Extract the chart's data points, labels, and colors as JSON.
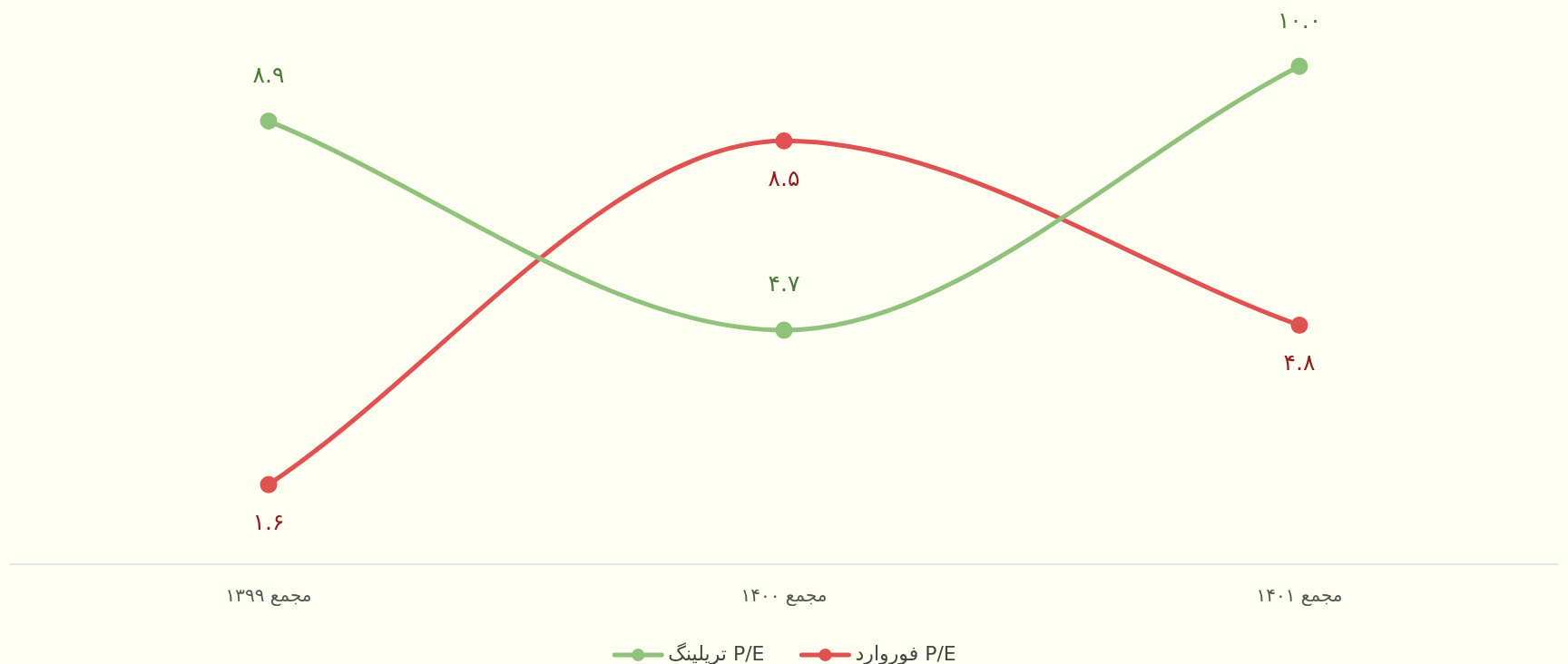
{
  "chart_data": {
    "type": "line",
    "categories": [
      "مجمع ۱۳۹۹",
      "مجمع ۱۴۰۰",
      "مجمع ۱۴۰۱"
    ],
    "series": [
      {
        "name": "P/E تریلینگ",
        "color": "#8fc27a",
        "values": [
          8.9,
          4.7,
          10.0
        ],
        "value_labels": [
          "۸.۹",
          "۴.۷",
          "۱۰.۰"
        ]
      },
      {
        "name": "P/E فوروارد",
        "color": "#e05252",
        "values": [
          1.6,
          8.5,
          4.8
        ],
        "value_labels": [
          "۱.۶",
          "۸.۵",
          "۴.۸"
        ]
      }
    ],
    "legend": "bottom",
    "tick_labels": "x",
    "marker": "circle",
    "line_style": "solid"
  }
}
